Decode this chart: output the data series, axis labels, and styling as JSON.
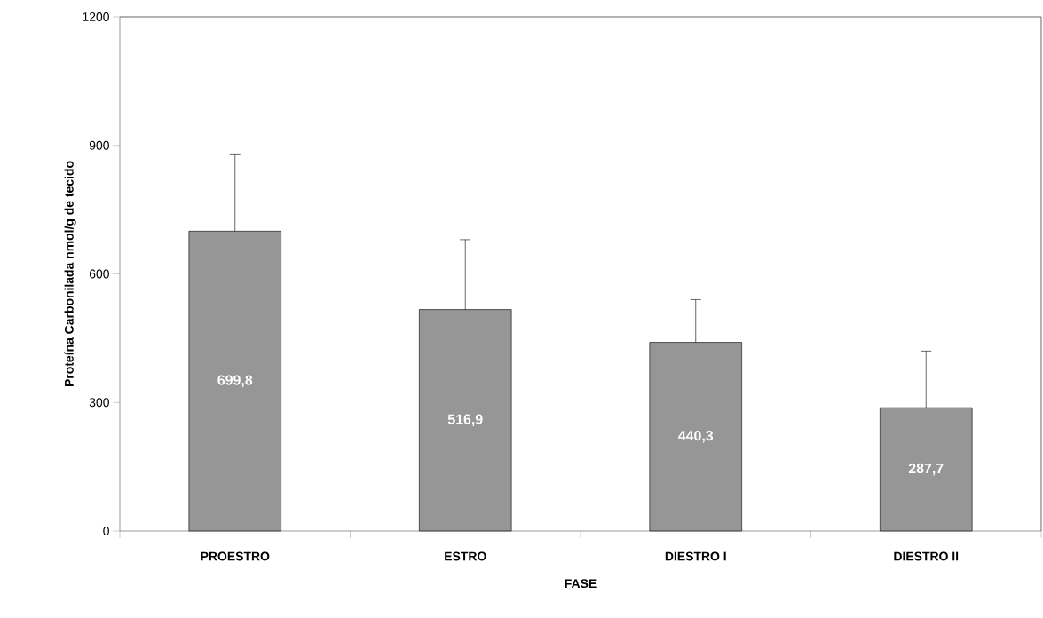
{
  "chart_data": {
    "type": "bar",
    "xlabel": "FASE",
    "ylabel": "Proteína Carbonilada nmol/g de tecido",
    "categories": [
      "PROESTRO",
      "ESTRO",
      "DIESTRO I",
      "DIESTRO II"
    ],
    "values": [
      699.8,
      516.9,
      440.3,
      287.7
    ],
    "value_labels": [
      "699,8",
      "516,9",
      "440,3",
      "287,7"
    ],
    "errors": [
      [
        699.8,
        880
      ],
      [
        516.9,
        680
      ],
      [
        440.3,
        540
      ],
      [
        287.7,
        420
      ]
    ],
    "color": "#969696",
    "ylim": [
      0,
      1200
    ],
    "yticks": [
      0,
      300,
      600,
      900,
      1200
    ],
    "grid": false
  }
}
